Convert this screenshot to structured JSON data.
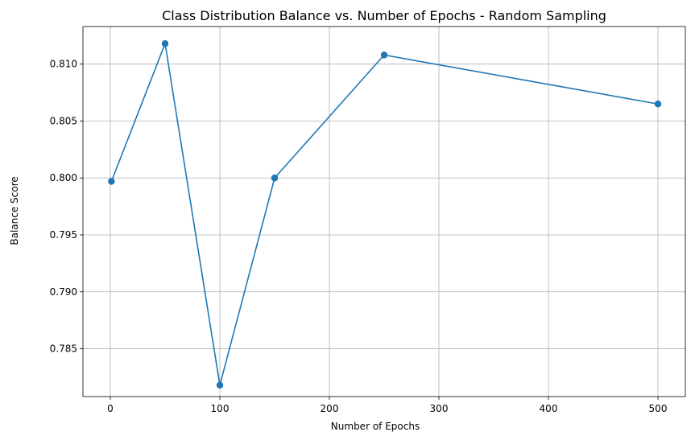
{
  "chart_data": {
    "type": "line",
    "title": "Class Distribution Balance vs. Number of Epochs - Random Sampling",
    "xlabel": "Number of Epochs",
    "ylabel": "Balance Score",
    "xlim": [
      -25,
      525
    ],
    "ylim": [
      0.7808,
      0.8133
    ],
    "xticks": [
      0,
      100,
      200,
      300,
      400,
      500
    ],
    "xtick_labels": [
      "0",
      "100",
      "200",
      "300",
      "400",
      "500"
    ],
    "yticks": [
      0.785,
      0.79,
      0.795,
      0.8,
      0.805,
      0.81
    ],
    "ytick_labels": [
      "0.785",
      "0.790",
      "0.795",
      "0.800",
      "0.805",
      "0.810"
    ],
    "grid": true,
    "series": [
      {
        "x": [
          1,
          50,
          100,
          150,
          250,
          500
        ],
        "y": [
          0.7997,
          0.8118,
          0.7818,
          0.8,
          0.8108,
          0.8065
        ],
        "color": "#1f77b4",
        "marker": "circle"
      }
    ]
  }
}
